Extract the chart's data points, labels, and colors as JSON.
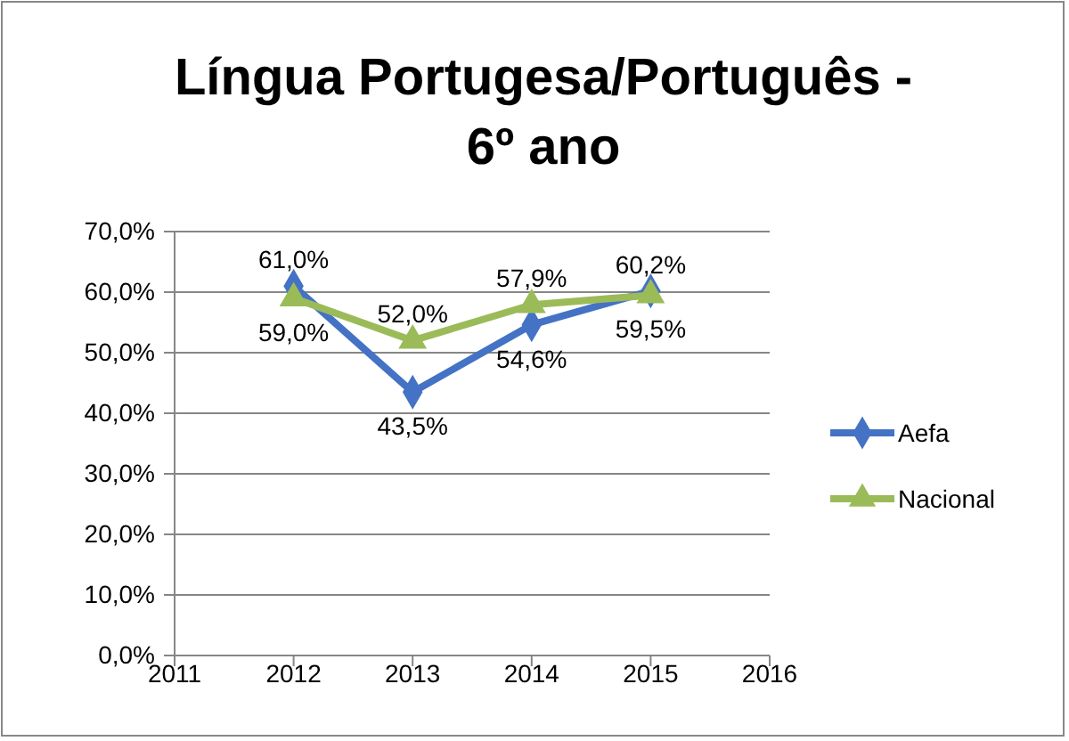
{
  "chart_data": {
    "type": "line",
    "title": "Língua Portugesa/Português - 6º ano",
    "x": [
      2012,
      2013,
      2014,
      2015
    ],
    "xlim": [
      2011,
      2016
    ],
    "xticks": [
      2011,
      2012,
      2013,
      2014,
      2015,
      2016
    ],
    "ylim": [
      0,
      70
    ],
    "yticks": [
      {
        "value": 0,
        "label": "0,0%"
      },
      {
        "value": 10,
        "label": "10,0%"
      },
      {
        "value": 20,
        "label": "20,0%"
      },
      {
        "value": 30,
        "label": "30,0%"
      },
      {
        "value": 40,
        "label": "40,0%"
      },
      {
        "value": 50,
        "label": "50,0%"
      },
      {
        "value": 60,
        "label": "60,0%"
      },
      {
        "value": 70,
        "label": "70,0%"
      }
    ],
    "grid": "y",
    "legend": "right",
    "series": [
      {
        "name": "Aefa",
        "color": "#4472c4",
        "marker": "diamond",
        "values": [
          61.0,
          43.5,
          54.6,
          60.2
        ],
        "value_labels": [
          "61,0%",
          "43,5%",
          "54,6%",
          "60,2%"
        ]
      },
      {
        "name": "Nacional",
        "color": "#9bbb59",
        "marker": "triangle",
        "values": [
          59.0,
          52.0,
          57.9,
          59.5
        ],
        "value_labels": [
          "59,0%",
          "52,0%",
          "57,9%",
          "59,5%"
        ]
      }
    ]
  }
}
